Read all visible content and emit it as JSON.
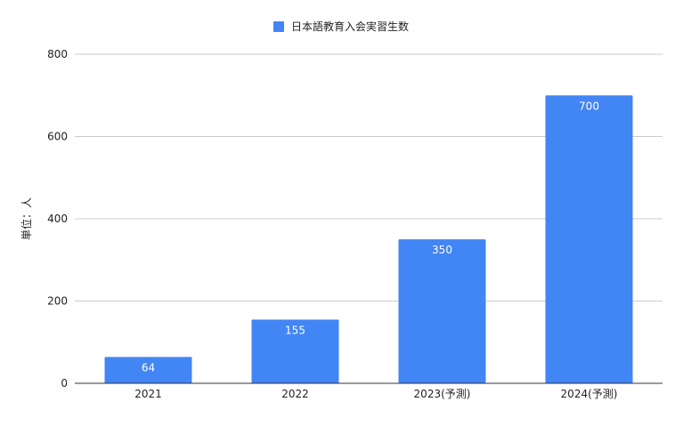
{
  "chart_data": {
    "type": "bar",
    "categories": [
      "2021",
      "2022",
      "2023(予測)",
      "2024(予測)"
    ],
    "series": [
      {
        "name": "日本語教育入会実習生数",
        "values": [
          64,
          155,
          350,
          700
        ],
        "color": "#4285f4"
      }
    ],
    "data_labels": [
      "64",
      "155",
      "350",
      "700"
    ],
    "ylabel": "単位：人",
    "ylim": [
      0,
      800
    ],
    "yticks": [
      "0",
      "200",
      "400",
      "600",
      "800"
    ],
    "grid": true,
    "legend_position": "top-center"
  }
}
